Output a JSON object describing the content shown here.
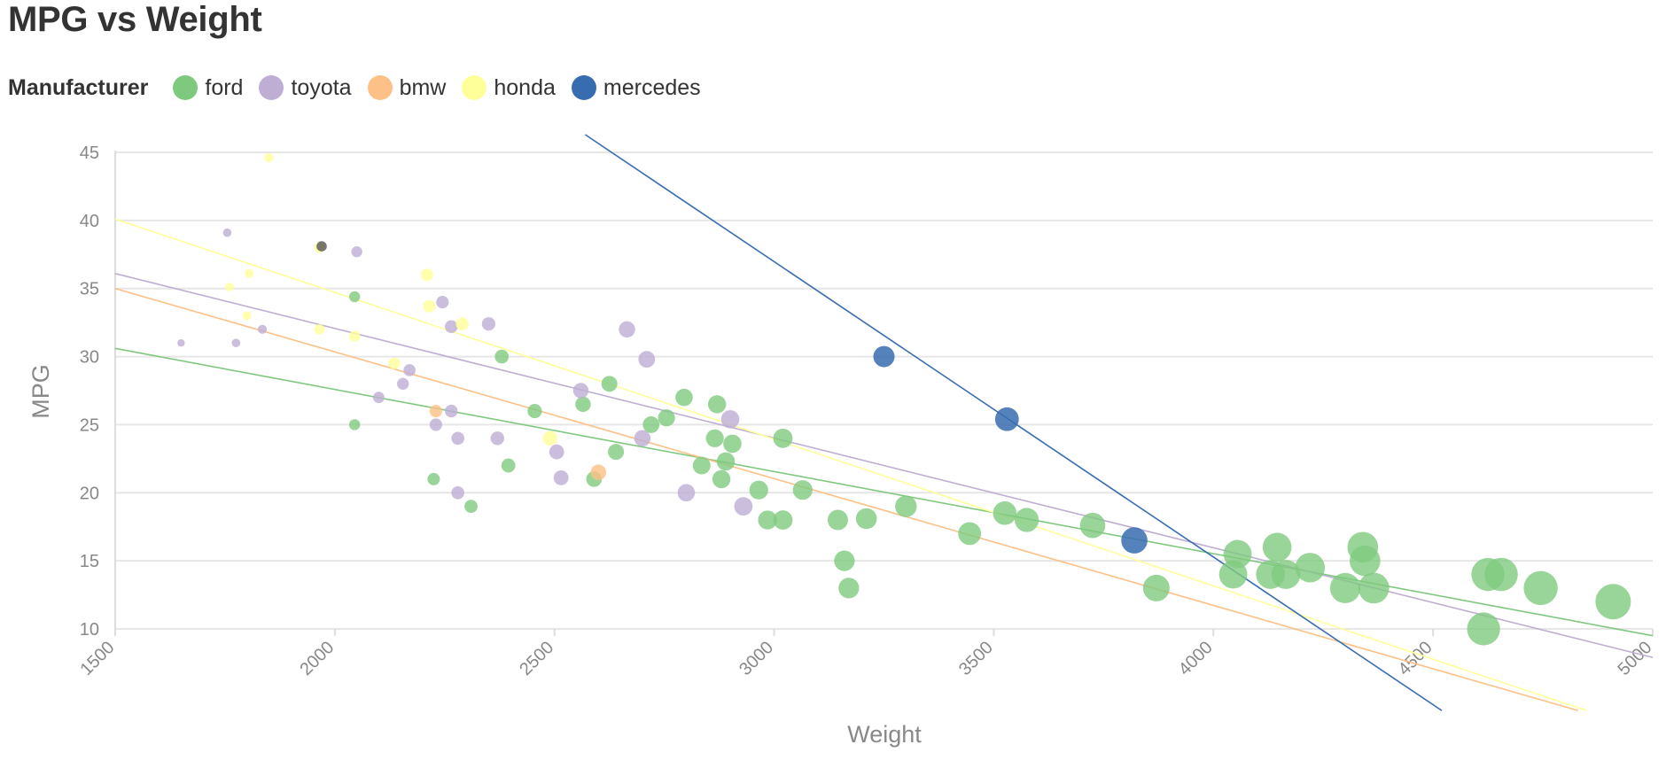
{
  "title": "MPG vs Weight",
  "legend": {
    "title": "Manufacturer",
    "items": [
      {
        "name": "ford",
        "color": "#7fc97f"
      },
      {
        "name": "toyota",
        "color": "#beaed4"
      },
      {
        "name": "bmw",
        "color": "#fdc086"
      },
      {
        "name": "honda",
        "color": "#ffff99"
      },
      {
        "name": "mercedes",
        "color": "#386cb0"
      }
    ]
  },
  "chart_data": {
    "type": "scatter",
    "title": "MPG vs Weight",
    "xlabel": "Weight",
    "ylabel": "MPG",
    "xlim": [
      1500,
      5000
    ],
    "ylim": [
      10,
      45
    ],
    "xticks": [
      1500,
      2000,
      2500,
      3000,
      3500,
      4000,
      4500,
      5000
    ],
    "yticks": [
      10,
      15,
      20,
      25,
      30,
      35,
      40,
      45
    ],
    "grid": "horizontal",
    "legend_position": "top",
    "size_encoding": "weight",
    "series": [
      {
        "name": "ford",
        "color": "#7fc97f",
        "points": [
          [
            2045,
            34.4
          ],
          [
            2045,
            25
          ],
          [
            2225,
            21
          ],
          [
            2310,
            19
          ],
          [
            2380,
            30
          ],
          [
            2395,
            22
          ],
          [
            2455,
            26
          ],
          [
            2565,
            26.5
          ],
          [
            2590,
            21
          ],
          [
            2625,
            28
          ],
          [
            2640,
            23
          ],
          [
            2720,
            25
          ],
          [
            2755,
            25.5
          ],
          [
            2795,
            27
          ],
          [
            2835,
            22
          ],
          [
            2865,
            24
          ],
          [
            2870,
            26.5
          ],
          [
            2880,
            21
          ],
          [
            2890,
            22.3
          ],
          [
            2905,
            23.6
          ],
          [
            2965,
            20.2
          ],
          [
            2985,
            18
          ],
          [
            3020,
            18
          ],
          [
            3020,
            24
          ],
          [
            3065,
            20.2
          ],
          [
            3145,
            18
          ],
          [
            3160,
            15
          ],
          [
            3170,
            13
          ],
          [
            3210,
            18.1
          ],
          [
            3300,
            19
          ],
          [
            3445,
            17
          ],
          [
            3525,
            18.5
          ],
          [
            3575,
            18
          ],
          [
            3725,
            17.6
          ],
          [
            3870,
            13
          ],
          [
            4045,
            14
          ],
          [
            4055,
            15.5
          ],
          [
            4130,
            14
          ],
          [
            4145,
            16
          ],
          [
            4165,
            14
          ],
          [
            4220,
            14.5
          ],
          [
            4300,
            13
          ],
          [
            4340,
            16
          ],
          [
            4345,
            15
          ],
          [
            4365,
            13
          ],
          [
            4615,
            10
          ],
          [
            4625,
            14
          ],
          [
            4655,
            14
          ],
          [
            4745,
            13
          ],
          [
            4910,
            12
          ]
        ],
        "trend": [
          [
            1500,
            30.6
          ],
          [
            5000,
            9.5
          ]
        ]
      },
      {
        "name": "toyota",
        "color": "#beaed4",
        "points": [
          [
            1650,
            31
          ],
          [
            1755,
            39.1
          ],
          [
            1775,
            31
          ],
          [
            1835,
            32
          ],
          [
            2050,
            37.7
          ],
          [
            2100,
            27
          ],
          [
            2155,
            28
          ],
          [
            2170,
            29
          ],
          [
            2230,
            25
          ],
          [
            2245,
            34
          ],
          [
            2265,
            32.2
          ],
          [
            2265,
            26
          ],
          [
            2280,
            24
          ],
          [
            2280,
            20
          ],
          [
            2350,
            32.4
          ],
          [
            2370,
            24
          ],
          [
            2505,
            23
          ],
          [
            2515,
            21.1
          ],
          [
            2560,
            27.5
          ],
          [
            2665,
            32
          ],
          [
            2700,
            24
          ],
          [
            2710,
            29.8
          ],
          [
            2800,
            20
          ],
          [
            2900,
            25.4
          ],
          [
            2930,
            19
          ]
        ],
        "trend": [
          [
            1500,
            36.1
          ],
          [
            5000,
            7.9
          ]
        ]
      },
      {
        "name": "bmw",
        "color": "#fdc086",
        "points": [
          [
            2230,
            26
          ],
          [
            2600,
            21.5
          ]
        ],
        "trend": [
          [
            1500,
            35
          ],
          [
            4830,
            4
          ]
        ]
      },
      {
        "name": "honda",
        "color": "#ffff99",
        "points": [
          [
            1850,
            44.6
          ],
          [
            1760,
            35.1
          ],
          [
            1800,
            33
          ],
          [
            1805,
            36.1
          ],
          [
            1965,
            32
          ],
          [
            1965,
            38
          ],
          [
            2045,
            31.5
          ],
          [
            2135,
            29.5
          ],
          [
            2210,
            36
          ],
          [
            2215,
            33.7
          ],
          [
            2290,
            32.4
          ],
          [
            2490,
            24
          ]
        ],
        "trend": [
          [
            1500,
            40.1
          ],
          [
            4850,
            4
          ]
        ]
      },
      {
        "name": "mercedes",
        "color": "#386cb0",
        "points": [
          [
            3250,
            30
          ],
          [
            3530,
            25.4
          ],
          [
            3820,
            16.5
          ]
        ],
        "trend": [
          [
            2570,
            46.3
          ],
          [
            4520,
            4
          ]
        ]
      },
      {
        "name": "",
        "color": "#555555",
        "points": [
          [
            1970,
            38.1
          ]
        ],
        "trend": null
      }
    ]
  }
}
